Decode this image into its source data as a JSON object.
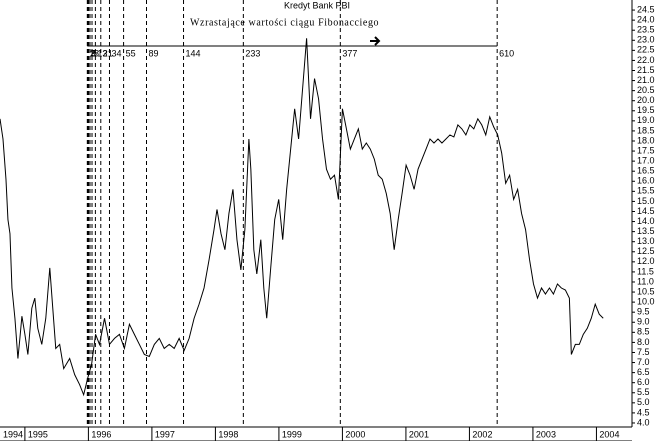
{
  "chart_data": {
    "type": "line",
    "title": "Kredyt Bank PBI",
    "annotation": "Wzrastające wartości ciągu Fibonacciego",
    "color": "#000000",
    "x": [
      1994.608,
      1994.655,
      1994.702,
      1994.733,
      1994.765,
      1994.796,
      1994.843,
      1994.89,
      1994.921,
      1994.953,
      1995.0,
      1995.047,
      1995.109,
      1995.156,
      1995.203,
      1995.266,
      1995.329,
      1995.392,
      1995.439,
      1995.486,
      1995.548,
      1995.611,
      1995.705,
      1995.784,
      1995.862,
      1995.925,
      1995.987,
      1996.05,
      1996.113,
      1996.175,
      1996.254,
      1996.332,
      1996.411,
      1996.489,
      1996.567,
      1996.646,
      1996.724,
      1996.803,
      1996.881,
      1996.959,
      1997.038,
      1997.116,
      1997.194,
      1997.273,
      1997.351,
      1997.429,
      1997.508,
      1997.586,
      1997.665,
      1997.743,
      1997.821,
      1997.9,
      1997.978,
      1998.025,
      1998.088,
      1998.15,
      1998.213,
      1998.276,
      1998.339,
      1998.401,
      1998.464,
      1998.527,
      1998.558,
      1998.605,
      1998.652,
      1998.715,
      1998.762,
      1998.808,
      1998.871,
      1998.934,
      1998.997,
      1999.06,
      1999.122,
      1999.185,
      1999.248,
      1999.31,
      1999.373,
      1999.436,
      1999.498,
      1999.561,
      1999.624,
      1999.687,
      1999.749,
      1999.812,
      1999.875,
      1999.937,
      2000.0,
      2000.063,
      2000.125,
      2000.188,
      2000.251,
      2000.313,
      2000.376,
      2000.439,
      2000.502,
      2000.564,
      2000.627,
      2000.69,
      2000.752,
      2000.815,
      2000.878,
      2000.94,
      2001.003,
      2001.066,
      2001.129,
      2001.191,
      2001.254,
      2001.317,
      2001.379,
      2001.442,
      2001.505,
      2001.567,
      2001.63,
      2001.693,
      2001.755,
      2001.818,
      2001.881,
      2001.944,
      2002.006,
      2002.069,
      2002.132,
      2002.194,
      2002.257,
      2002.32,
      2002.382,
      2002.445,
      2002.508,
      2002.571,
      2002.633,
      2002.696,
      2002.759,
      2002.821,
      2002.884,
      2002.947,
      2003.009,
      2003.072,
      2003.135,
      2003.197,
      2003.26,
      2003.323,
      2003.386,
      2003.448,
      2003.511,
      2003.574,
      2003.605,
      2003.668,
      2003.73,
      2003.793,
      2003.856,
      2003.919,
      2003.981,
      2004.044,
      2004.107
    ],
    "values": [
      19.1,
      18.1,
      16.1,
      14.1,
      13.4,
      10.7,
      9.2,
      7.2,
      8.2,
      9.3,
      8.4,
      7.4,
      9.7,
      10.2,
      8.7,
      7.9,
      9.2,
      11.7,
      9.7,
      7.7,
      7.9,
      6.7,
      7.2,
      6.4,
      5.9,
      5.4,
      6.2,
      6.9,
      8.4,
      7.9,
      9.2,
      7.9,
      8.2,
      8.4,
      7.7,
      8.9,
      8.4,
      7.9,
      7.4,
      7.3,
      7.9,
      8.2,
      7.7,
      7.9,
      7.7,
      8.2,
      7.6,
      8.2,
      9.2,
      9.9,
      10.7,
      12.1,
      13.6,
      14.6,
      13.4,
      12.6,
      14.4,
      15.6,
      13.1,
      11.6,
      13.6,
      18.1,
      16.6,
      12.6,
      11.4,
      13.1,
      10.7,
      9.2,
      11.7,
      14.1,
      15.1,
      13.1,
      15.6,
      17.6,
      19.6,
      18.1,
      20.6,
      23.1,
      19.1,
      21.1,
      20.1,
      18.1,
      16.6,
      16.1,
      16.3,
      15.1,
      19.6,
      18.6,
      17.6,
      18.1,
      18.6,
      17.6,
      17.9,
      17.6,
      17.1,
      16.3,
      16.1,
      15.4,
      14.4,
      12.6,
      14.1,
      15.4,
      16.8,
      16.3,
      15.6,
      16.6,
      17.1,
      17.6,
      18.1,
      17.9,
      18.1,
      17.9,
      18.1,
      18.3,
      18.2,
      18.8,
      18.6,
      18.3,
      18.8,
      18.6,
      19.1,
      18.8,
      18.3,
      19.2,
      18.7,
      18.3,
      17.4,
      15.9,
      16.3,
      15.1,
      15.6,
      14.4,
      13.6,
      12.1,
      10.9,
      10.2,
      10.7,
      10.4,
      10.7,
      10.4,
      10.9,
      10.7,
      10.6,
      10.2,
      7.4,
      7.9,
      7.9,
      8.4,
      8.7,
      9.2,
      9.9,
      9.4,
      9.2
    ],
    "xlim": [
      1994.608,
      2004.56
    ],
    "xticks": [
      1994,
      1995,
      1996,
      1997,
      1998,
      1999,
      2000,
      2001,
      2002,
      2003,
      2004
    ],
    "ylim": [
      3.8,
      25.0
    ],
    "yticks": [
      {
        "value": 4,
        "label": "4.0"
      },
      4.5,
      {
        "value": 5,
        "label": "5.0"
      },
      5.5,
      {
        "value": 6,
        "label": "6.0"
      },
      6.5,
      {
        "value": 7,
        "label": "7.0"
      },
      7.5,
      {
        "value": 8,
        "label": "8.0"
      },
      8.5,
      {
        "value": 9,
        "label": "9.0"
      },
      9.5,
      {
        "value": 10,
        "label": "10.0"
      },
      10.5,
      {
        "value": 11,
        "label": "11.0"
      },
      11.5,
      {
        "value": 12,
        "label": "12.0"
      },
      12.5,
      {
        "value": 13,
        "label": "13.0"
      },
      13.5,
      {
        "value": 14,
        "label": "14.0"
      },
      14.5,
      {
        "value": 15,
        "label": "15.0"
      },
      15.5,
      {
        "value": 16,
        "label": "16.0"
      },
      16.5,
      {
        "value": 17,
        "label": "17.0"
      },
      17.5,
      {
        "value": 18,
        "label": "18.0"
      },
      18.5,
      {
        "value": 19,
        "label": "19.0"
      },
      19.5,
      {
        "value": 20,
        "label": "20.0"
      },
      20.5,
      {
        "value": 21,
        "label": "21.0"
      },
      21.5,
      {
        "value": 22,
        "label": "22.0"
      },
      22.5,
      {
        "value": 23,
        "label": "23.0"
      },
      23.5,
      {
        "value": 24,
        "label": "24.0"
      },
      24.5
    ],
    "markers": [
      {
        "label": "1",
        "x": 1995.983
      },
      {
        "label": "2",
        "x": 1995.993
      },
      {
        "label": "3",
        "x": 1996.004
      },
      {
        "label": "5",
        "x": 1996.025
      },
      {
        "label": "8",
        "x": 1996.057
      },
      {
        "label": "13",
        "x": 1996.11
      },
      {
        "label": "21",
        "x": 1996.195
      },
      {
        "label": "34",
        "x": 1996.332
      },
      {
        "label": "55",
        "x": 1996.554
      },
      {
        "label": "89",
        "x": 1996.915
      },
      {
        "label": "144",
        "x": 1997.498
      },
      {
        "label": "233",
        "x": 1998.44
      },
      {
        "label": "377",
        "x": 1999.967
      },
      {
        "label": "610",
        "x": 2002.437
      }
    ]
  }
}
